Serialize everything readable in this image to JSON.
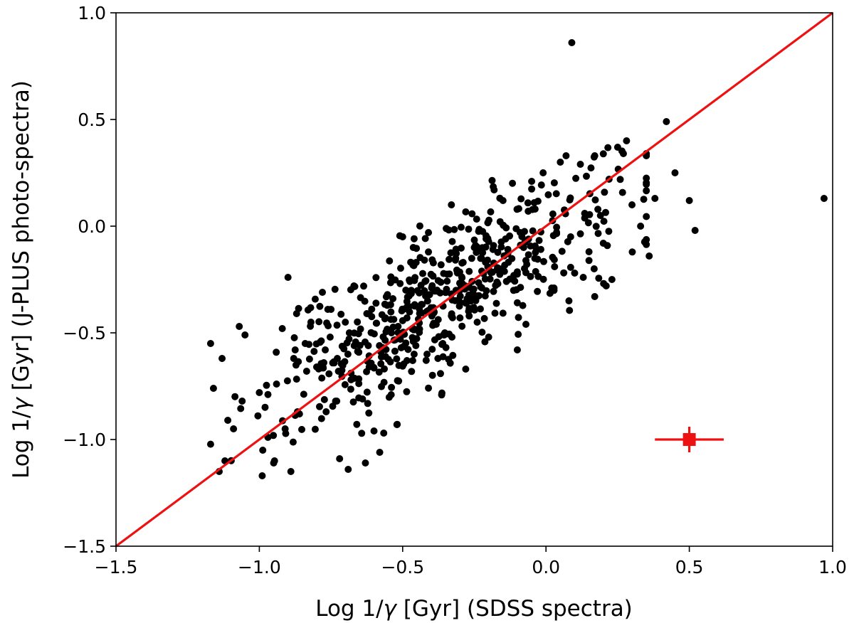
{
  "chart_data": {
    "type": "scatter",
    "title": "",
    "xlabel_prefix": "Log 1/",
    "xlabel_symbol": "γ",
    "xlabel_suffix": " [Gyr] (SDSS spectra)",
    "ylabel_prefix": "Log 1/",
    "ylabel_symbol": "γ",
    "ylabel_suffix": " [Gyr] (J-PLUS photo-spectra)",
    "xlim": [
      -1.5,
      1.0
    ],
    "ylim": [
      -1.5,
      1.0
    ],
    "xticks": [
      -1.5,
      -1.0,
      -0.5,
      0.0,
      0.5,
      1.0
    ],
    "yticks": [
      -1.5,
      -1.0,
      -0.5,
      0.0,
      0.5,
      1.0
    ],
    "xtick_labels": [
      "−1.5",
      "−1.0",
      "−0.5",
      "0.0",
      "0.5",
      "1.0"
    ],
    "ytick_labels": [
      "−1.5",
      "−1.0",
      "−0.5",
      "0.0",
      "0.5",
      "1.0"
    ],
    "grid": false,
    "colors": {
      "points": "#000000",
      "line": "#ee1111",
      "errorbar": "#ee1111"
    },
    "reference_line": {
      "name": "one-to-one",
      "from": [
        -1.5,
        -1.5
      ],
      "to": [
        1.0,
        1.0
      ]
    },
    "error_bar": {
      "x": 0.5,
      "y": -1.0,
      "xerr": 0.12,
      "yerr": 0.06
    },
    "scatter_seed": 7,
    "scatter_model": {
      "n": 560,
      "x_mean": -0.35,
      "x_sd": 0.3,
      "x_min": -1.17,
      "x_max": 0.35,
      "slope": 0.72,
      "intercept": -0.08,
      "resid_sd": 0.17
    },
    "scatter_points": [
      {
        "x": 0.09,
        "y": 0.86
      },
      {
        "x": 0.97,
        "y": 0.13
      },
      {
        "x": 0.42,
        "y": 0.49
      },
      {
        "x": 0.45,
        "y": 0.25
      },
      {
        "x": 0.52,
        "y": -0.02
      },
      {
        "x": 0.5,
        "y": 0.12
      },
      {
        "x": 0.36,
        "y": -0.14
      },
      {
        "x": 0.38,
        "y": 0.13
      },
      {
        "x": 0.33,
        "y": 0.0
      },
      {
        "x": 0.25,
        "y": 0.37
      },
      {
        "x": 0.27,
        "y": 0.34
      },
      {
        "x": 0.3,
        "y": 0.1
      },
      {
        "x": -1.17,
        "y": -0.55
      },
      {
        "x": -1.16,
        "y": -0.76
      },
      {
        "x": -1.14,
        "y": -1.15
      },
      {
        "x": -1.12,
        "y": -1.1
      },
      {
        "x": -1.13,
        "y": -0.62
      },
      {
        "x": -1.11,
        "y": -0.91
      },
      {
        "x": -1.09,
        "y": -0.95
      },
      {
        "x": -1.07,
        "y": -0.47
      },
      {
        "x": -1.05,
        "y": -0.51
      },
      {
        "x": -1.06,
        "y": -0.82
      },
      {
        "x": -1.0,
        "y": -0.78
      },
      {
        "x": -0.99,
        "y": -1.17
      },
      {
        "x": -0.97,
        "y": -0.99
      },
      {
        "x": -0.95,
        "y": -1.11
      },
      {
        "x": -0.94,
        "y": -0.74
      },
      {
        "x": -0.92,
        "y": -0.48
      },
      {
        "x": -0.9,
        "y": -0.24
      },
      {
        "x": -0.91,
        "y": -0.95
      },
      {
        "x": -0.89,
        "y": -1.15
      },
      {
        "x": -0.88,
        "y": -0.62
      },
      {
        "x": -0.87,
        "y": -0.41
      },
      {
        "x": -0.86,
        "y": -0.88
      },
      {
        "x": -0.84,
        "y": -0.55
      },
      {
        "x": -0.82,
        "y": -0.45
      },
      {
        "x": -0.8,
        "y": -0.66
      },
      {
        "x": -0.78,
        "y": -0.31
      },
      {
        "x": -0.77,
        "y": -0.58
      },
      {
        "x": -0.75,
        "y": -0.39
      },
      {
        "x": -0.73,
        "y": -0.82
      },
      {
        "x": -0.72,
        "y": -1.09
      },
      {
        "x": -0.7,
        "y": -0.45
      },
      {
        "x": -0.69,
        "y": -1.14
      },
      {
        "x": -0.68,
        "y": -0.72
      },
      {
        "x": -0.67,
        "y": -0.28
      },
      {
        "x": -0.64,
        "y": -0.81
      },
      {
        "x": -0.63,
        "y": -1.11
      },
      {
        "x": -0.62,
        "y": -0.56
      },
      {
        "x": -0.6,
        "y": -0.96
      },
      {
        "x": -0.58,
        "y": -1.06
      },
      {
        "x": -0.56,
        "y": -0.43
      },
      {
        "x": -0.54,
        "y": -0.79
      },
      {
        "x": -0.52,
        "y": -0.93
      },
      {
        "x": -0.5,
        "y": -0.05
      },
      {
        "x": -0.46,
        "y": -0.6
      },
      {
        "x": -0.41,
        "y": -0.03
      },
      {
        "x": -0.36,
        "y": -0.55
      },
      {
        "x": -0.33,
        "y": 0.1
      },
      {
        "x": -0.3,
        "y": -0.43
      },
      {
        "x": -0.28,
        "y": -0.67
      },
      {
        "x": -0.25,
        "y": -0.1
      },
      {
        "x": -0.2,
        "y": -0.52
      },
      {
        "x": -0.15,
        "y": 0.12
      },
      {
        "x": -0.1,
        "y": -0.58
      },
      {
        "x": -0.07,
        "y": -0.46
      },
      {
        "x": -0.05,
        "y": 0.21
      },
      {
        "x": -0.01,
        "y": 0.25
      },
      {
        "x": 0.03,
        "y": -0.19
      },
      {
        "x": 0.05,
        "y": 0.3
      },
      {
        "x": 0.07,
        "y": 0.33
      },
      {
        "x": 0.1,
        "y": -0.22
      },
      {
        "x": 0.12,
        "y": 0.29
      },
      {
        "x": 0.15,
        "y": -0.12
      },
      {
        "x": 0.17,
        "y": 0.33
      },
      {
        "x": 0.2,
        "y": -0.08
      },
      {
        "x": 0.22,
        "y": 0.22
      },
      {
        "x": 0.23,
        "y": -0.25
      },
      {
        "x": 0.21,
        "y": -0.28
      },
      {
        "x": 0.19,
        "y": 0.05
      },
      {
        "x": 0.17,
        "y": -0.33
      },
      {
        "x": 0.13,
        "y": -0.24
      },
      {
        "x": 0.08,
        "y": -0.35
      },
      {
        "x": 0.02,
        "y": -0.29
      }
    ]
  }
}
